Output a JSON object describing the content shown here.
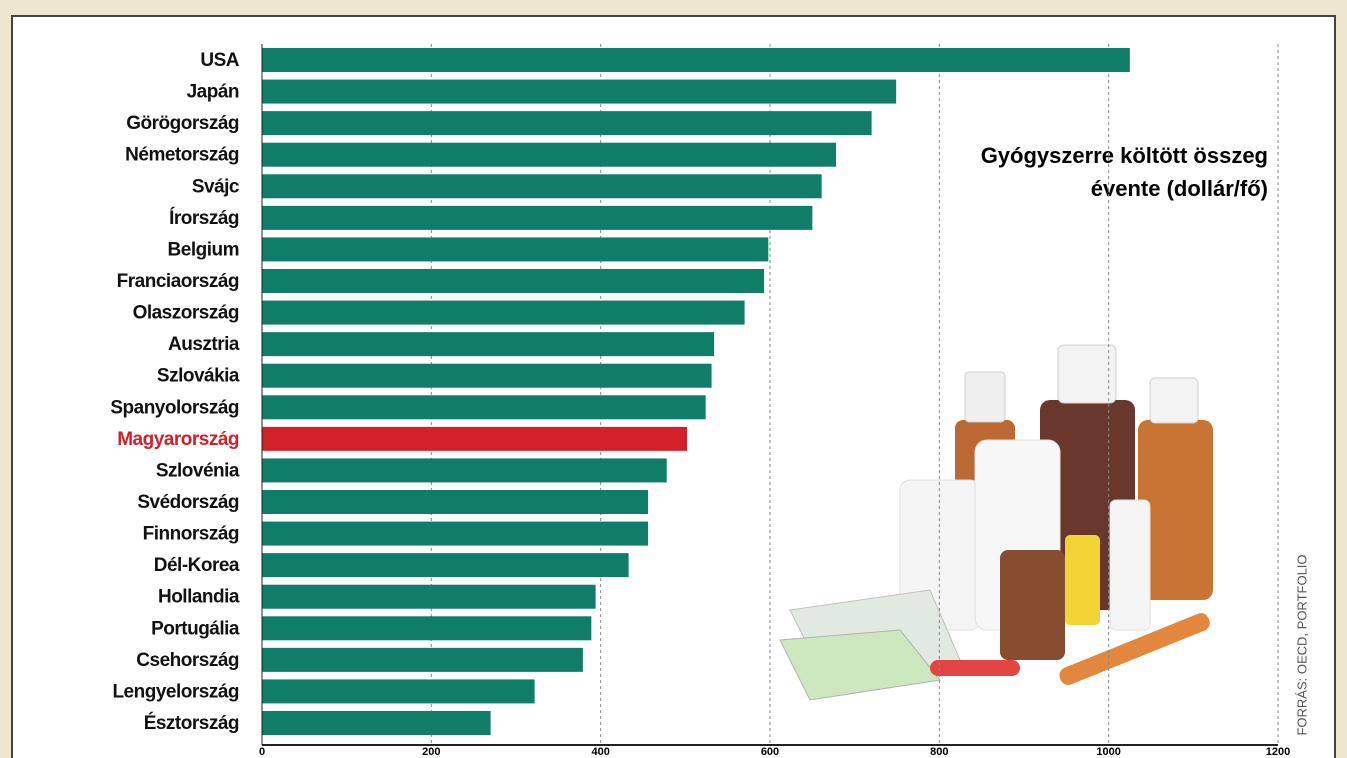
{
  "chart_data": {
    "type": "hbar",
    "title": [
      "Gyógyszerre költött összeg",
      "évente (dollár/fő)"
    ],
    "source": "FORRÁS: OECD, PORTFOLIO",
    "categories": [
      "USA",
      "Japán",
      "Görögország",
      "Németország",
      "Svájc",
      "Írország",
      "Belgium",
      "Franciaország",
      "Olaszország",
      "Ausztria",
      "Szlovákia",
      "Spanyolország",
      "Magyarország",
      "Szlovénia",
      "Svédország",
      "Finnország",
      "Dél-Korea",
      "Hollandia",
      "Portugália",
      "Csehország",
      "Lengyelország",
      "Észtország"
    ],
    "values": [
      1025,
      749,
      720,
      678,
      661,
      650,
      598,
      593,
      570,
      534,
      531,
      524,
      502,
      478,
      456,
      456,
      433,
      394,
      389,
      379,
      322,
      270
    ],
    "colors": [
      "#0f7d68",
      "#0f7d68",
      "#0f7d68",
      "#0f7d68",
      "#0f7d68",
      "#0f7d68",
      "#0f7d68",
      "#0f7d68",
      "#0f7d68",
      "#0f7d68",
      "#0f7d68",
      "#0f7d68",
      "#d42029",
      "#0f7d68",
      "#0f7d68",
      "#0f7d68",
      "#0f7d68",
      "#0f7d68",
      "#0f7d68",
      "#0f7d68",
      "#0f7d68",
      "#0f7d68"
    ],
    "xlim": [
      0,
      1200
    ],
    "xticks": [
      0,
      200,
      400,
      600,
      800,
      1000,
      1200
    ],
    "grid": true
  }
}
